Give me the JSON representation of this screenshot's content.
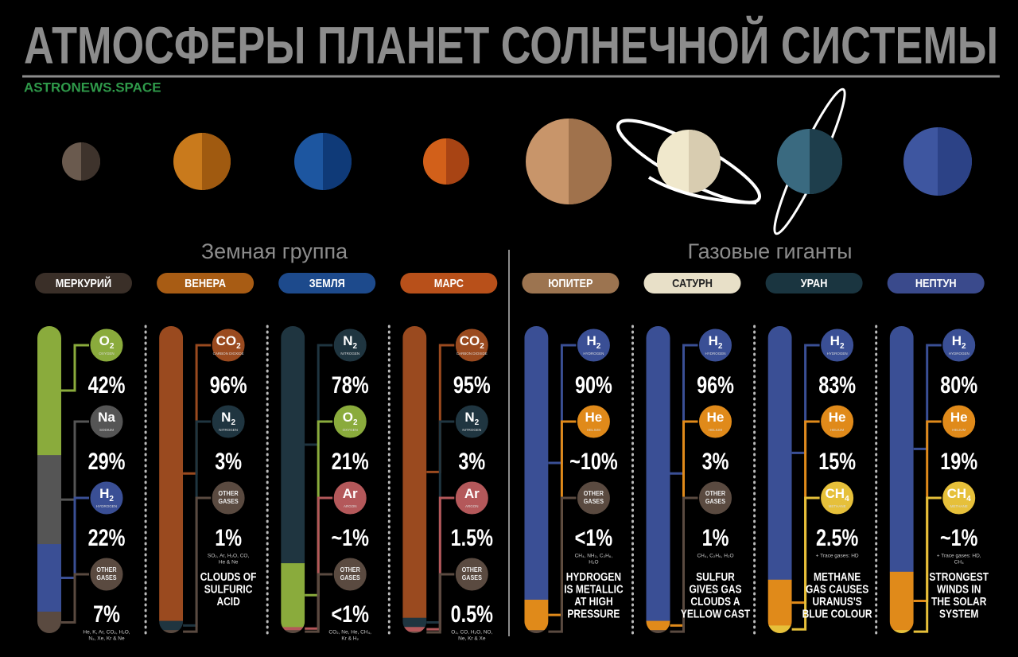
{
  "header": {
    "title": "АТМОСФЕРЫ ПЛАНЕТ СОЛНЕЧНОЙ СИСТЕМЫ",
    "source": "ASTRONEWS.SPACE"
  },
  "groups": [
    {
      "label": "Земная группа"
    },
    {
      "label": "Газовые гиганты"
    }
  ],
  "planets": [
    {
      "name": "МЕРКУРИЙ",
      "color": "#3a2f28",
      "text_color": "#ffffff",
      "disc": [
        "#6a5a4e",
        "#3e332c"
      ],
      "gases": [
        {
          "symbol": "O",
          "sub": "2",
          "label": "OXYGEN",
          "color": "#8aab3c",
          "value": "42%"
        },
        {
          "symbol": "Na",
          "label": "SODIUM",
          "color": "#555555",
          "value": "29%"
        },
        {
          "symbol": "H",
          "sub": "2",
          "label": "HYDROGEN",
          "color": "#3a4f95",
          "value": "22%"
        },
        {
          "lines": [
            "OTHER",
            "GASES"
          ],
          "color": "#5a4a40",
          "value": "7%",
          "footnote": [
            "He, K, Ar, CO₂, H₂O,",
            "N₂, Xe, Kr & Ne"
          ]
        }
      ]
    },
    {
      "name": "ВЕНЕРА",
      "color": "#a85c14",
      "text_color": "#ffffff",
      "disc": [
        "#c97a1c",
        "#a05a10"
      ],
      "gases": [
        {
          "symbol": "CO",
          "sub": "2",
          "label": "CARBON DIOXIDE",
          "color": "#9a4a1f",
          "value": "96%"
        },
        {
          "symbol": "N",
          "sub": "2",
          "label": "NITROGEN",
          "color": "#1f3540",
          "value": "3%"
        },
        {
          "lines": [
            "OTHER",
            "GASES"
          ],
          "color": "#5a4a40",
          "value": "1%",
          "footnote": [
            "SO₂, Ar, H₂O, CO,",
            "He & Ne"
          ]
        }
      ],
      "note": [
        "CLOUDS OF",
        "SULFURIC",
        "ACID"
      ]
    },
    {
      "name": "ЗЕМЛЯ",
      "color": "#1d4a8c",
      "text_color": "#ffffff",
      "disc": [
        "#1d56a0",
        "#0f3a78"
      ],
      "gases": [
        {
          "symbol": "N",
          "sub": "2",
          "label": "NITROGEN",
          "color": "#1f3540",
          "value": "78%"
        },
        {
          "symbol": "O",
          "sub": "2",
          "label": "OXYGEN",
          "color": "#8aab3c",
          "value": "21%"
        },
        {
          "symbol": "Ar",
          "label": "ARGON",
          "color": "#b4585a",
          "value": "~1%"
        },
        {
          "lines": [
            "OTHER",
            "GASES"
          ],
          "color": "#5a4a40",
          "value": "<1%",
          "footnote": [
            "CO₂, Ne, He, CH₄,",
            "Kr & H₂"
          ]
        }
      ]
    },
    {
      "name": "МАРС",
      "color": "#b8501a",
      "text_color": "#ffffff",
      "disc": [
        "#d2601a",
        "#a84414"
      ],
      "gases": [
        {
          "symbol": "CO",
          "sub": "2",
          "label": "CARBON DIOXIDE",
          "color": "#9a4a1f",
          "value": "95%"
        },
        {
          "symbol": "N",
          "sub": "2",
          "label": "NITROGEN",
          "color": "#1f3540",
          "value": "3%"
        },
        {
          "symbol": "Ar",
          "label": "ARGON",
          "color": "#b4585a",
          "value": "1.5%"
        },
        {
          "lines": [
            "OTHER",
            "GASES"
          ],
          "color": "#5a4a40",
          "value": "0.5%",
          "footnote": [
            "O₂, CO, H₂O, NO,",
            "Ne, Kr & Xe"
          ]
        }
      ]
    },
    {
      "name": "ЮПИТЕР",
      "color": "#9c7450",
      "text_color": "#ffffff",
      "disc": [
        "#c8956a",
        "#a0724c"
      ],
      "gases": [
        {
          "symbol": "H",
          "sub": "2",
          "label": "HYDROGEN",
          "color": "#3a4f95",
          "value": "90%"
        },
        {
          "symbol": "He",
          "label": "HELIUM",
          "color": "#e08a1a",
          "value": "~10%"
        },
        {
          "lines": [
            "OTHER",
            "GASES"
          ],
          "color": "#5a4a40",
          "value": "<1%",
          "footnote": [
            "CH₄, NH₃, C₂H₆,",
            "H₂O"
          ]
        }
      ],
      "note": [
        "HYDROGEN",
        "IS METALLIC",
        "AT HIGH",
        "PRESSURE"
      ]
    },
    {
      "name": "САТУРН",
      "color": "#e8e0c8",
      "text_color": "#222222",
      "disc": [
        "#f0e8cc",
        "#d8ccb0"
      ],
      "gases": [
        {
          "symbol": "H",
          "sub": "2",
          "label": "HYDROGEN",
          "color": "#3a4f95",
          "value": "96%"
        },
        {
          "symbol": "He",
          "label": "HELIUM",
          "color": "#e08a1a",
          "value": "3%"
        },
        {
          "lines": [
            "OTHER",
            "GASES"
          ],
          "color": "#5a4a40",
          "value": "1%",
          "footnote": [
            "CH₄, C₂H₆, H₂O"
          ]
        }
      ],
      "note": [
        "SULFUR",
        "GIVES GAS",
        "CLOUDS A",
        "YELLOW CAST"
      ]
    },
    {
      "name": "УРАН",
      "color": "#1a3540",
      "text_color": "#ffffff",
      "disc": [
        "#3a6a80",
        "#1e3e4c"
      ],
      "gases": [
        {
          "symbol": "H",
          "sub": "2",
          "label": "HYDROGEN",
          "color": "#3a4f95",
          "value": "83%"
        },
        {
          "symbol": "He",
          "label": "HELIUM",
          "color": "#e08a1a",
          "value": "15%"
        },
        {
          "symbol": "CH",
          "sub": "4",
          "label": "METHANE",
          "color": "#e6c03a",
          "value": "2.5%",
          "footnote": [
            "+ Trace gases: HD"
          ]
        }
      ],
      "note": [
        "METHANE",
        "GAS CAUSES",
        "URANUS'S",
        "BLUE COLOUR"
      ]
    },
    {
      "name": "НЕПТУН",
      "color": "#3a4a8c",
      "text_color": "#ffffff",
      "disc": [
        "#3e56a0",
        "#2c4286"
      ],
      "gases": [
        {
          "symbol": "H",
          "sub": "2",
          "label": "HYDROGEN",
          "color": "#3a4f95",
          "value": "80%"
        },
        {
          "symbol": "He",
          "label": "HELIUM",
          "color": "#e08a1a",
          "value": "19%"
        },
        {
          "symbol": "CH",
          "sub": "4",
          "label": "METHANE",
          "color": "#e6c03a",
          "value": "~1%",
          "footnote": [
            "+ Trace gases: HD,",
            "CH₄"
          ]
        }
      ],
      "note": [
        "STRONGEST",
        "WINDS IN",
        "THE SOLAR",
        "SYSTEM"
      ]
    }
  ]
}
